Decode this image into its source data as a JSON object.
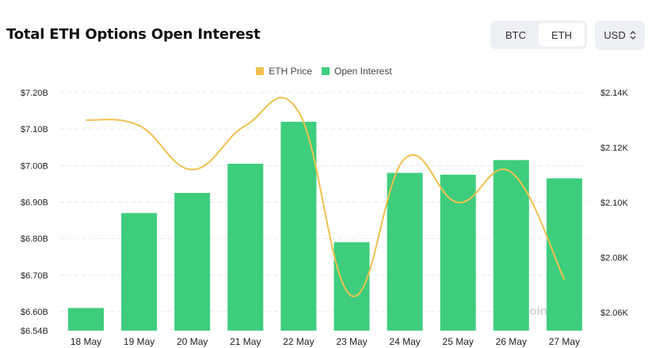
{
  "header": {
    "title": "Total ETH Options Open Interest",
    "toggle": [
      {
        "label": "BTC",
        "active": false
      },
      {
        "label": "ETH",
        "active": true
      }
    ],
    "currency": "USD"
  },
  "watermark": "coinglass",
  "colors": {
    "bar": "#3ecd7d",
    "line": "#f0c04f",
    "grid": "#e6e9ee",
    "toggle_bg": "#edf0f4"
  },
  "chart_data": {
    "type": "bar",
    "title": "Total ETH Options Open Interest",
    "categories": [
      "18 May",
      "19 May",
      "20 May",
      "21 May",
      "22 May",
      "23 May",
      "24 May",
      "25 May",
      "26 May",
      "27 May"
    ],
    "series": [
      {
        "name": "Open Interest",
        "type": "bar",
        "axis": "left",
        "values": [
          6.61,
          6.87,
          6.925,
          7.005,
          7.12,
          6.79,
          6.98,
          6.975,
          7.015,
          6.965
        ]
      },
      {
        "name": "ETH Price",
        "type": "line",
        "axis": "right",
        "values": [
          2130,
          2128,
          2112,
          2128,
          2133,
          2066,
          2116,
          2100,
          2111,
          2072
        ]
      }
    ],
    "y_left": {
      "ticks": [
        "$7.20B",
        "$7.10B",
        "$7.00B",
        "$6.90B",
        "$6.80B",
        "$6.70B",
        "$6.60B",
        "$6.54B"
      ],
      "tick_values": [
        7.2,
        7.1,
        7.0,
        6.9,
        6.8,
        6.7,
        6.6,
        6.54
      ],
      "range": [
        6.54,
        7.2
      ]
    },
    "y_right": {
      "ticks": [
        "$2.14K",
        "$2.12K",
        "$2.10K",
        "$2.08K",
        "$2.06K"
      ],
      "tick_values": [
        2140,
        2120,
        2100,
        2080,
        2060
      ],
      "range": [
        2057,
        2140
      ]
    },
    "legend_position": "top",
    "grid": true
  }
}
